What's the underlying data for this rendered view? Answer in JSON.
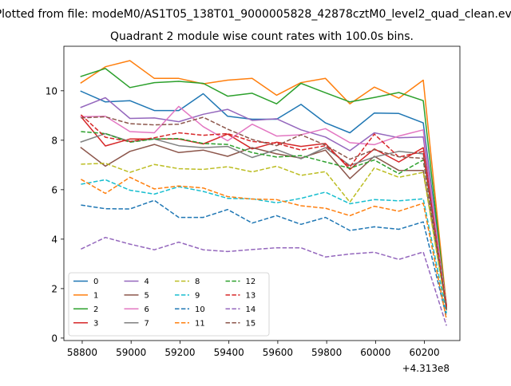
{
  "figure": {
    "suptitle": "Plotted from file: modeM0/AS1T05_138T01_9000005828_42878cztM0_level2_quad_clean.evt",
    "title": "Quadrant 2 module wise count rates with 100.0s bins.",
    "x_offset_label": "+4.313e8"
  },
  "chart_data": {
    "type": "line",
    "title": "Quadrant 2 module wise count rates with 100.0s bins.",
    "xlabel": "",
    "ylabel": "",
    "x_offset": 431300000,
    "x": [
      58795,
      58895,
      58995,
      59095,
      59195,
      59295,
      59395,
      59495,
      59595,
      59695,
      59795,
      59895,
      59995,
      60095,
      60195,
      60290
    ],
    "xlim": [
      58725,
      60345
    ],
    "ylim": [
      -0.1,
      11.8
    ],
    "xticks": [
      58800,
      59000,
      59200,
      59400,
      59600,
      59800,
      60000,
      60200
    ],
    "yticks": [
      0,
      2,
      4,
      6,
      8,
      10
    ],
    "grid": false,
    "legend": {
      "placement": "lower-left",
      "columns": 4
    },
    "series": [
      {
        "name": "0",
        "color": "#1f77b4",
        "dash": "solid",
        "values": [
          9.98,
          9.55,
          9.6,
          9.2,
          9.2,
          9.88,
          8.97,
          8.85,
          8.85,
          9.45,
          8.7,
          8.3,
          9.1,
          9.08,
          8.7,
          1.35
        ]
      },
      {
        "name": "1",
        "color": "#ff7f0e",
        "dash": "solid",
        "values": [
          10.32,
          10.97,
          11.22,
          10.5,
          10.5,
          10.28,
          10.43,
          10.5,
          9.82,
          10.33,
          10.5,
          9.47,
          10.15,
          9.7,
          10.43,
          1.3
        ]
      },
      {
        "name": "2",
        "color": "#2ca02c",
        "dash": "solid",
        "values": [
          10.58,
          10.9,
          10.13,
          10.33,
          10.38,
          10.3,
          9.78,
          9.9,
          9.47,
          10.3,
          9.92,
          9.55,
          9.73,
          9.93,
          9.6,
          1.2
        ]
      },
      {
        "name": "3",
        "color": "#d62728",
        "dash": "solid",
        "values": [
          8.95,
          7.77,
          8.05,
          8.05,
          8.05,
          7.85,
          8.25,
          7.65,
          7.92,
          7.75,
          7.87,
          6.82,
          7.65,
          7.12,
          7.7,
          1.3
        ]
      },
      {
        "name": "4",
        "color": "#9467bd",
        "dash": "solid",
        "values": [
          9.33,
          9.72,
          8.88,
          8.9,
          8.75,
          9.05,
          9.25,
          8.8,
          8.87,
          8.42,
          8.13,
          7.58,
          8.3,
          8.1,
          8.13,
          1.25
        ]
      },
      {
        "name": "5",
        "color": "#8c564b",
        "dash": "solid",
        "values": [
          7.7,
          6.95,
          7.55,
          7.83,
          7.5,
          7.6,
          7.35,
          7.7,
          7.45,
          7.28,
          7.6,
          6.45,
          7.35,
          6.78,
          6.78,
          1.2
        ]
      },
      {
        "name": "6",
        "color": "#e377c2",
        "dash": "solid",
        "values": [
          8.95,
          8.97,
          8.35,
          8.3,
          9.37,
          8.55,
          7.98,
          8.65,
          8.17,
          8.22,
          8.47,
          7.9,
          7.82,
          8.17,
          8.42,
          1.2
        ]
      },
      {
        "name": "7",
        "color": "#7f7f7f",
        "dash": "solid",
        "values": [
          7.93,
          8.27,
          7.95,
          8.05,
          7.78,
          7.7,
          7.75,
          7.3,
          7.62,
          7.25,
          7.7,
          6.98,
          7.32,
          7.55,
          7.45,
          1.15
        ]
      },
      {
        "name": "8",
        "color": "#bcbd22",
        "dash": "dashed",
        "values": [
          7.03,
          7.07,
          6.7,
          7.02,
          6.85,
          6.82,
          6.93,
          6.72,
          6.95,
          6.58,
          6.73,
          5.5,
          6.88,
          6.5,
          6.7,
          1.1
        ]
      },
      {
        "name": "9",
        "color": "#17becf",
        "dash": "dashed",
        "values": [
          6.22,
          6.4,
          5.98,
          5.82,
          6.12,
          5.93,
          5.65,
          5.63,
          5.47,
          5.65,
          5.9,
          5.43,
          5.6,
          5.55,
          5.63,
          1.0
        ]
      },
      {
        "name": "10",
        "color": "#1f77b4",
        "dash": "dashed",
        "values": [
          5.38,
          5.23,
          5.22,
          5.57,
          4.88,
          4.88,
          5.2,
          4.65,
          4.95,
          4.6,
          4.88,
          4.35,
          4.5,
          4.4,
          4.7,
          0.85
        ]
      },
      {
        "name": "11",
        "color": "#ff7f0e",
        "dash": "dashed",
        "values": [
          6.42,
          5.85,
          6.5,
          6.03,
          6.15,
          6.07,
          5.72,
          5.62,
          5.6,
          5.35,
          5.25,
          4.95,
          5.33,
          5.13,
          5.45,
          0.75
        ]
      },
      {
        "name": "12",
        "color": "#2ca02c",
        "dash": "dashed",
        "values": [
          8.35,
          8.27,
          7.92,
          8.05,
          8.07,
          7.87,
          7.83,
          7.5,
          7.32,
          7.38,
          7.12,
          6.87,
          7.2,
          6.65,
          7.2,
          1.2
        ]
      },
      {
        "name": "13",
        "color": "#d62728",
        "dash": "dashed",
        "values": [
          9.03,
          8.12,
          7.95,
          8.1,
          8.3,
          8.2,
          8.27,
          7.95,
          7.88,
          7.6,
          7.78,
          6.92,
          8.25,
          7.32,
          7.55,
          1.25
        ]
      },
      {
        "name": "14",
        "color": "#9467bd",
        "dash": "dashed",
        "values": [
          3.6,
          4.07,
          3.8,
          3.57,
          3.88,
          3.57,
          3.5,
          3.58,
          3.65,
          3.65,
          3.28,
          3.4,
          3.47,
          3.18,
          3.48,
          0.5
        ]
      },
      {
        "name": "15",
        "color": "#8c564b",
        "dash": "dashed",
        "values": [
          8.9,
          8.95,
          8.67,
          8.62,
          8.65,
          8.93,
          8.45,
          8.03,
          7.78,
          8.22,
          7.8,
          7.23,
          7.62,
          7.33,
          7.27,
          1.15
        ]
      }
    ]
  }
}
